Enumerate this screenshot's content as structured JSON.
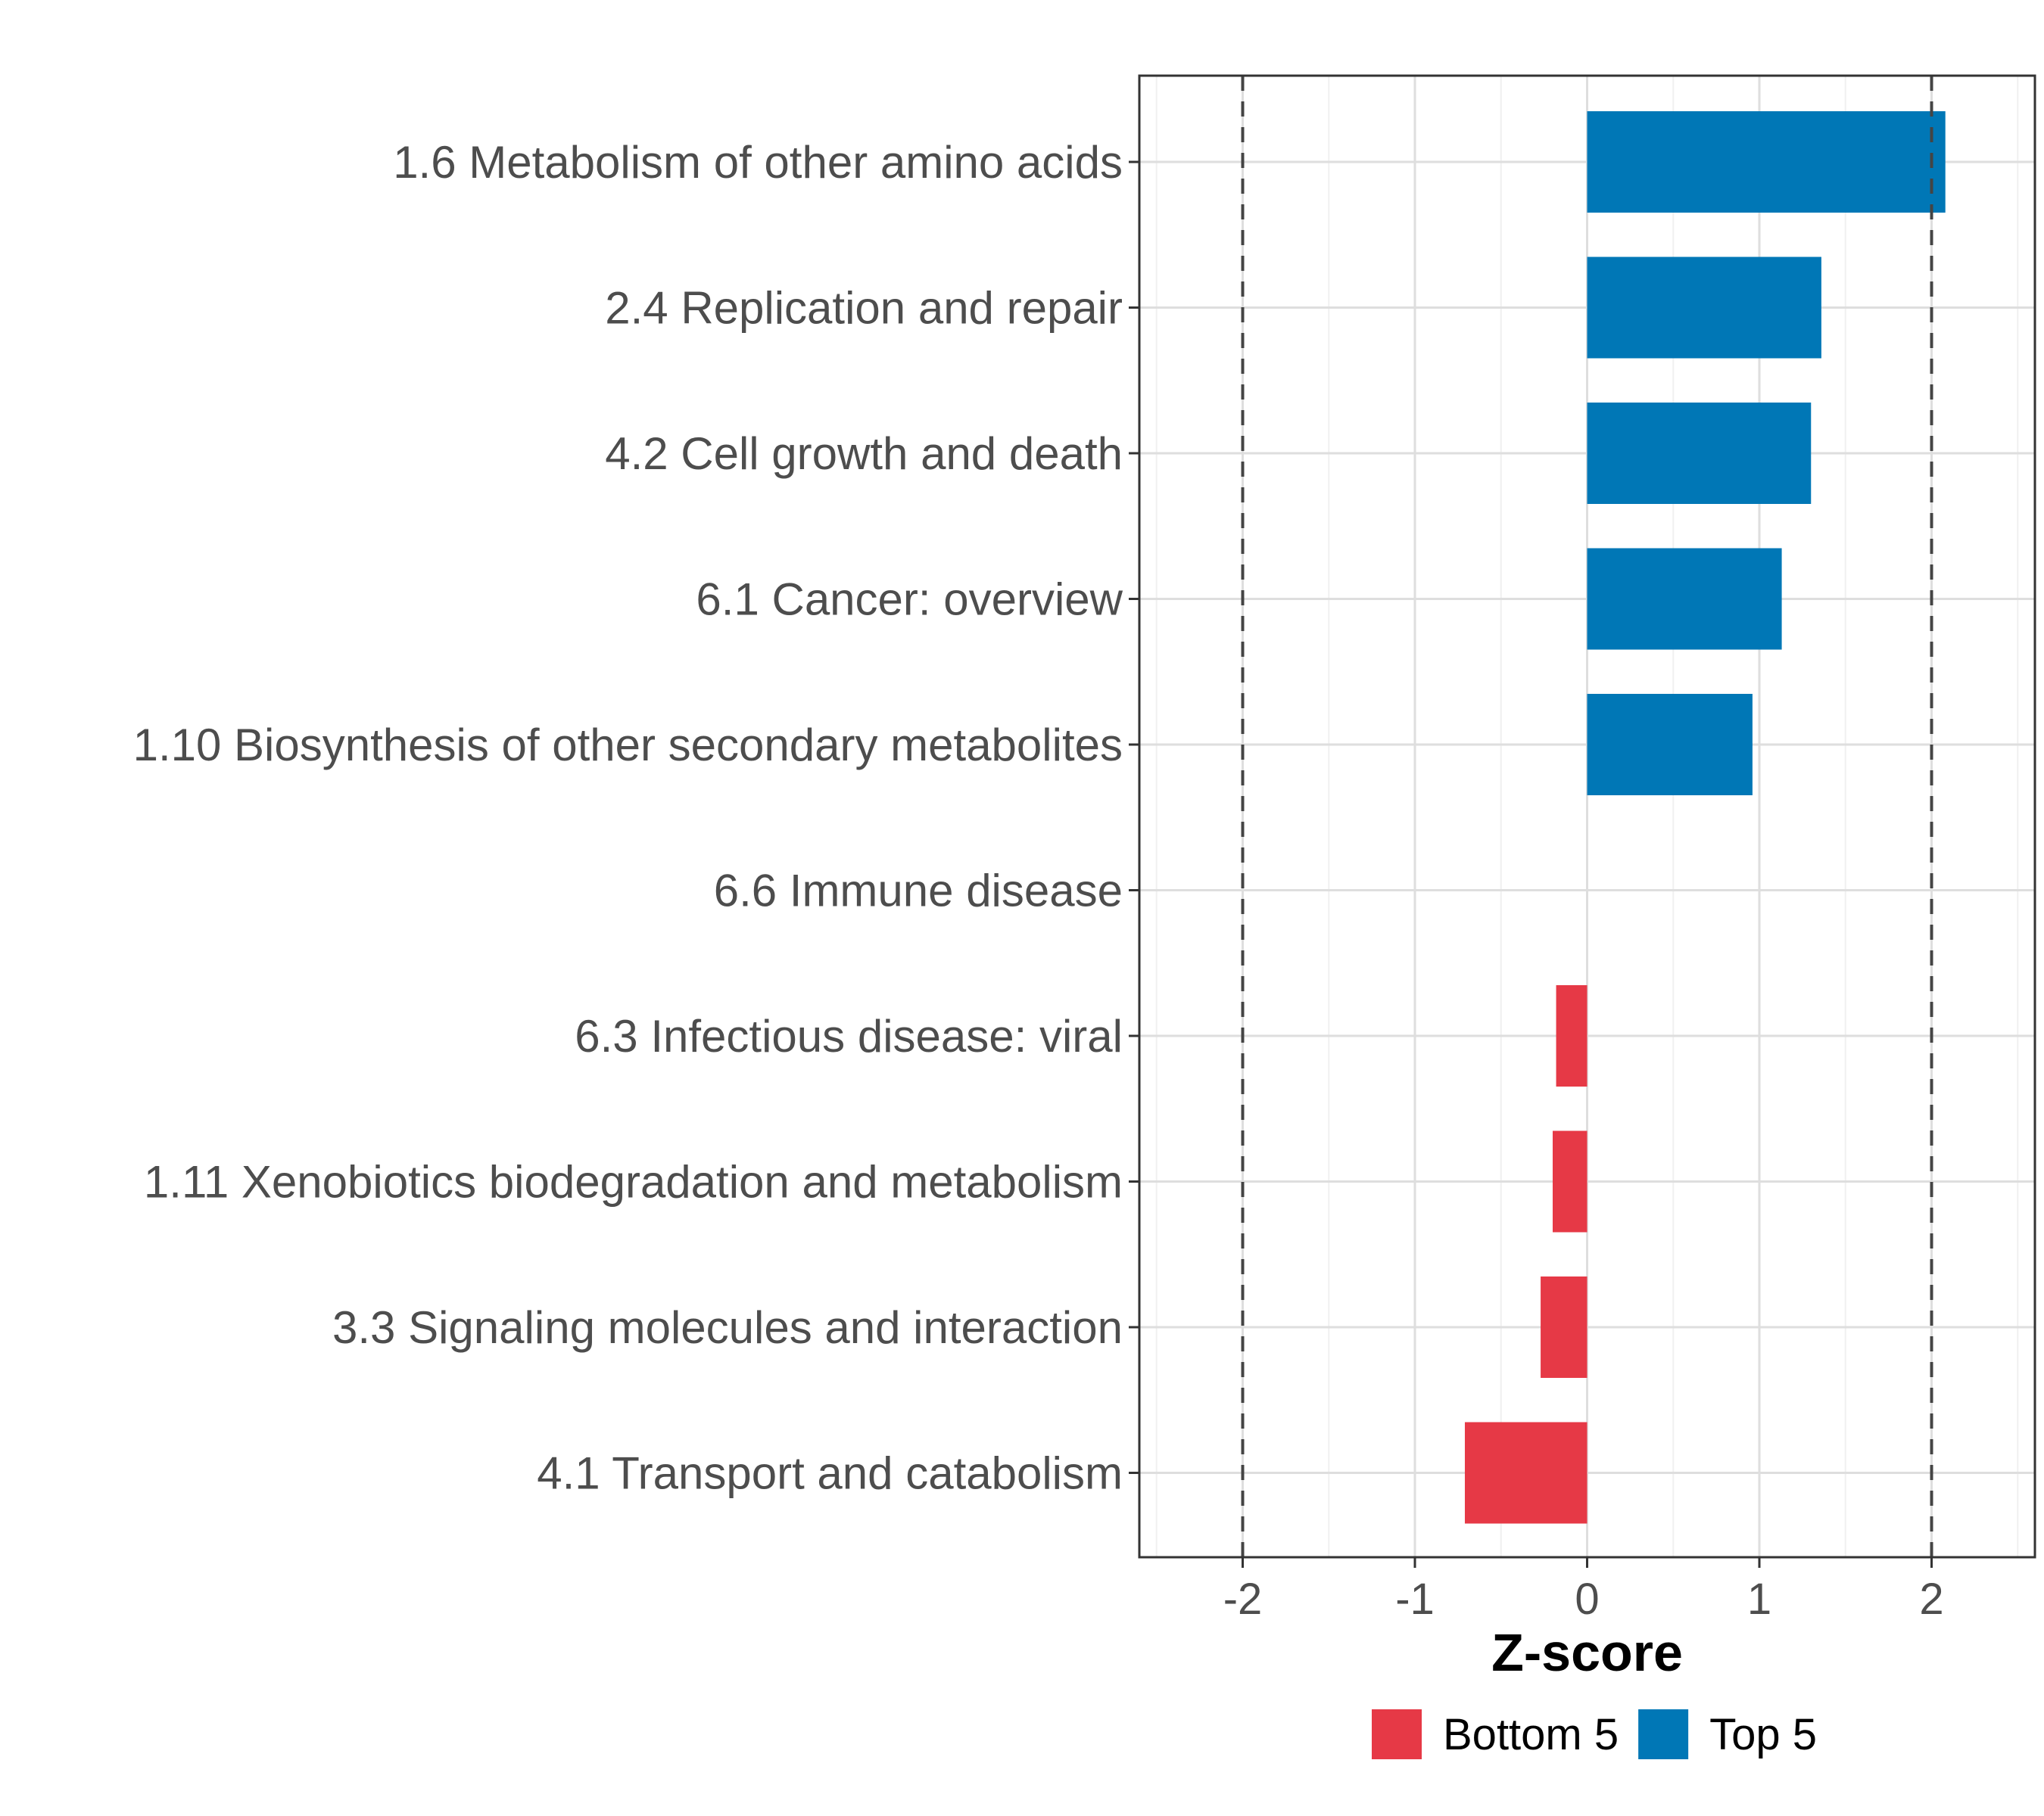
{
  "chart_data": {
    "type": "bar",
    "orientation": "horizontal",
    "xlabel": "Z-score",
    "ylabel": "",
    "xlim": [
      -2.6,
      2.6
    ],
    "xticks": [
      -2,
      -1,
      0,
      1,
      2
    ],
    "xtick_labels": [
      "-2",
      "-1",
      "0",
      "1",
      "2"
    ],
    "reference_lines": [
      -2,
      2
    ],
    "grid": true,
    "legend_position": "bottom",
    "categories": [
      "1.6 Metabolism of other amino acids",
      "2.4 Replication and repair",
      "4.2 Cell growth and death",
      "6.1 Cancer: overview",
      "1.10 Biosynthesis of other secondary metabolites",
      "6.6 Immune disease",
      "6.3 Infectious disease: viral",
      "1.11 Xenobiotics biodegradation and metabolism",
      "3.3 Signaling molecules and interaction",
      "4.1 Transport and catabolism"
    ],
    "values": [
      2.08,
      1.36,
      1.3,
      1.13,
      0.96,
      0.0,
      -0.18,
      -0.2,
      -0.27,
      -0.71
    ],
    "groups": [
      "Top 5",
      "Top 5",
      "Top 5",
      "Top 5",
      "Top 5",
      "Bottom 5",
      "Bottom 5",
      "Bottom 5",
      "Bottom 5",
      "Bottom 5"
    ],
    "legend": [
      {
        "name": "Bottom 5",
        "color": "#e63946"
      },
      {
        "name": "Top 5",
        "color": "#0077b6"
      }
    ]
  }
}
